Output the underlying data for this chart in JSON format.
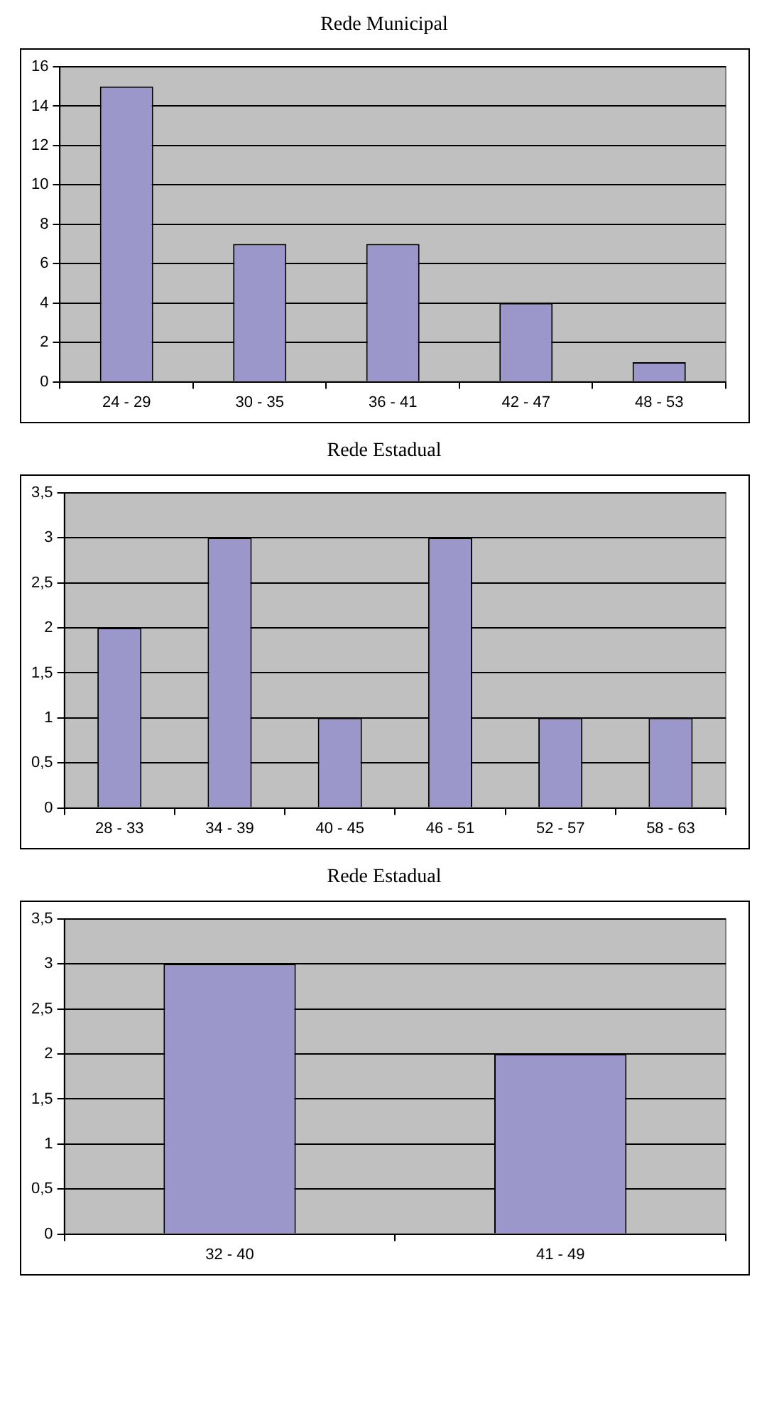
{
  "chart_data": [
    {
      "type": "bar",
      "title": "Rede Municipal",
      "categories": [
        "24 - 29",
        "30 - 35",
        "36 - 41",
        "42 - 47",
        "48 - 53"
      ],
      "values": [
        15,
        7,
        7,
        4,
        1
      ],
      "color": "#9b97cb",
      "ylim": [
        0,
        16
      ],
      "yticks": [
        0,
        2,
        4,
        6,
        8,
        10,
        12,
        14,
        16
      ],
      "grid": "y"
    },
    {
      "type": "bar",
      "title": "Rede Estadual",
      "categories": [
        "28 - 33",
        "34 - 39",
        "40 - 45",
        "46 - 51",
        "52 - 57",
        "58 - 63"
      ],
      "values": [
        2,
        3,
        1,
        3,
        1,
        1
      ],
      "color": "#9b97cb",
      "ylim": [
        0,
        3.5
      ],
      "yticks": [
        0,
        {
          "value": 0.5,
          "label": "0,5"
        },
        1,
        {
          "value": 1.5,
          "label": "1,5"
        },
        2,
        {
          "value": 2.5,
          "label": "2,5"
        },
        3,
        {
          "value": 3.5,
          "label": "3,5"
        }
      ],
      "grid": "y"
    },
    {
      "type": "bar",
      "title": "Rede Estadual",
      "categories": [
        "32 - 40",
        "41 - 49"
      ],
      "values": [
        3,
        2
      ],
      "color": "#9b97cb",
      "ylim": [
        0,
        3.5
      ],
      "yticks": [
        0,
        {
          "value": 0.5,
          "label": "0,5"
        },
        1,
        {
          "value": 1.5,
          "label": "1,5"
        },
        2,
        {
          "value": 2.5,
          "label": "2,5"
        },
        3,
        {
          "value": 3.5,
          "label": "3,5"
        }
      ],
      "grid": "y"
    }
  ]
}
